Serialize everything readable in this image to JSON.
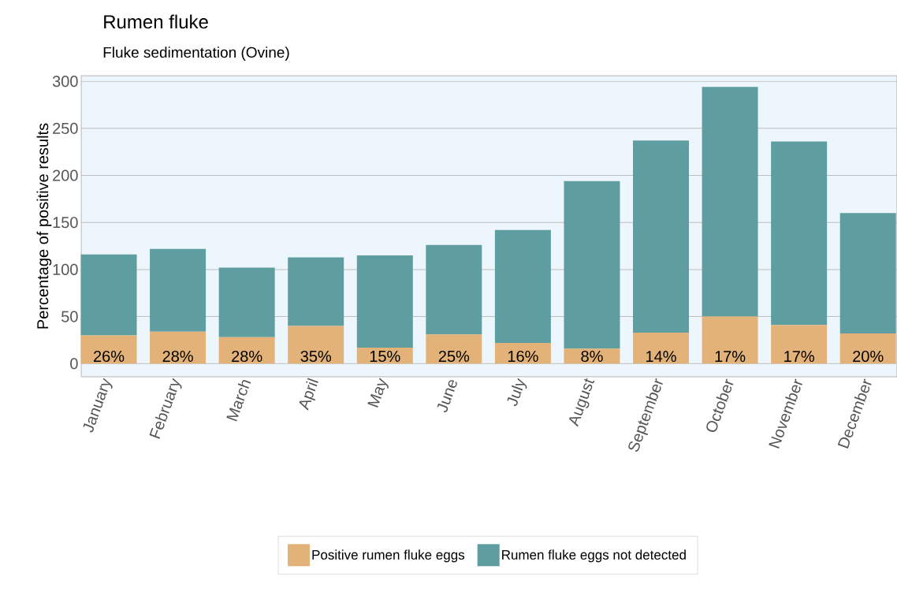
{
  "chart_data": {
    "type": "bar",
    "title": "Rumen fluke",
    "subtitle": "Fluke sedimentation (Ovine)",
    "ylabel": "Percentage of positive results",
    "categories": [
      "January",
      "February",
      "March",
      "April",
      "May",
      "June",
      "July",
      "August",
      "September",
      "October",
      "November",
      "December"
    ],
    "stacked": true,
    "series": [
      {
        "name": "Positive rumen fluke eggs",
        "color": "#e3b278",
        "values": [
          30,
          34,
          28,
          40,
          17,
          31,
          22,
          16,
          33,
          50,
          41,
          32
        ]
      },
      {
        "name": "Rumen fluke eggs not detected",
        "color": "#5f9ea0",
        "values": [
          86,
          88,
          74,
          73,
          98,
          95,
          120,
          178,
          204,
          244,
          195,
          128
        ]
      }
    ],
    "annotations": [
      {
        "text": "26%",
        "x": "January",
        "y": 0
      },
      {
        "text": "28%",
        "x": "February",
        "y": 0
      },
      {
        "text": "28%",
        "x": "March",
        "y": 0
      },
      {
        "text": "35%",
        "x": "April",
        "y": 0
      },
      {
        "text": "15%",
        "x": "May",
        "y": 0
      },
      {
        "text": "25%",
        "x": "June",
        "y": 0
      },
      {
        "text": "16%",
        "x": "July",
        "y": 0
      },
      {
        "text": "8%",
        "x": "August",
        "y": 0
      },
      {
        "text": "14%",
        "x": "September",
        "y": 0
      },
      {
        "text": "17%",
        "x": "October",
        "y": 0
      },
      {
        "text": "17%",
        "x": "November",
        "y": 0
      },
      {
        "text": "20%",
        "x": "December",
        "y": 0
      }
    ],
    "ylim": [
      -14,
      306
    ],
    "yticks": [
      0,
      50,
      100,
      150,
      200,
      250,
      300
    ],
    "grid": "y",
    "legend": "bottom"
  }
}
